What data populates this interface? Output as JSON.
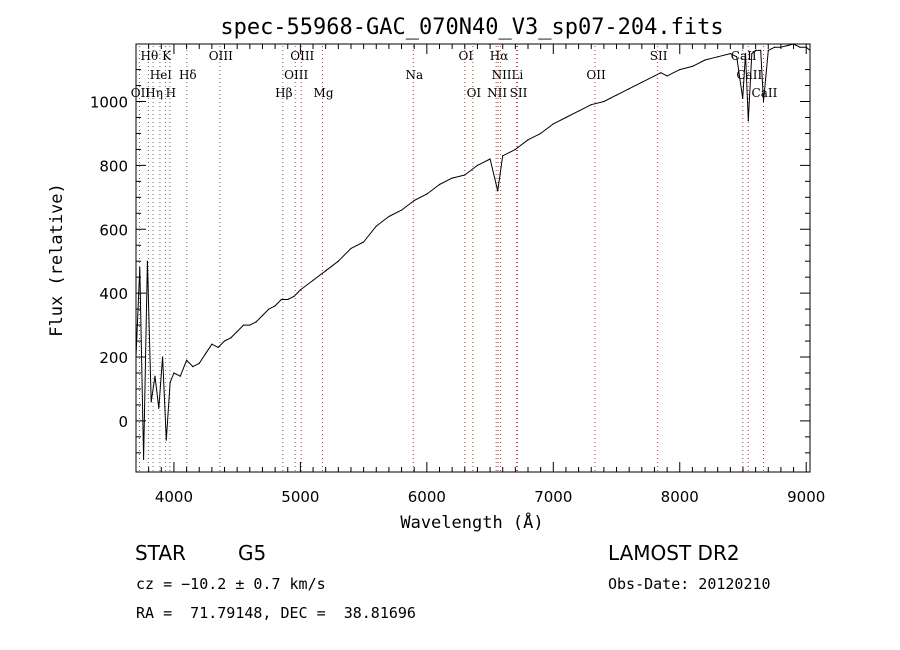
{
  "chart_data": {
    "type": "line",
    "title": "spec-55968-GAC_070N40_V3_sp07-204.fits",
    "xlabel": "Wavelength (Å)",
    "ylabel": "Flux (relative)",
    "xlim": [
      3700,
      9030
    ],
    "ylim": [
      -160,
      1180
    ],
    "x_ticks": [
      4000,
      5000,
      6000,
      7000,
      8000,
      9000
    ],
    "y_ticks": [
      0,
      200,
      400,
      600,
      800,
      1000
    ],
    "grid": false,
    "series": [
      {
        "x": [
          3700,
          3730,
          3760,
          3790,
          3820,
          3850,
          3880,
          3910,
          3940,
          3970,
          4000,
          4050,
          4100,
          4150,
          4200,
          4250,
          4300,
          4350,
          4400,
          4450,
          4500,
          4550,
          4600,
          4650,
          4700,
          4750,
          4800,
          4850,
          4900,
          4950,
          5000,
          5100,
          5200,
          5300,
          5400,
          5500,
          5600,
          5700,
          5800,
          5900,
          6000,
          6100,
          6200,
          6300,
          6400,
          6500,
          6560,
          6600,
          6700,
          6800,
          6900,
          7000,
          7100,
          7200,
          7300,
          7400,
          7500,
          7600,
          7700,
          7800,
          7850,
          7900,
          8000,
          8100,
          8200,
          8300,
          8400,
          8450,
          8498,
          8520,
          8542,
          8570,
          8600,
          8640,
          8662,
          8700,
          8750,
          8800,
          8850,
          8900,
          8950,
          9000,
          9030
        ],
        "y": [
          200,
          480,
          -120,
          500,
          60,
          140,
          40,
          200,
          -60,
          120,
          150,
          140,
          190,
          170,
          180,
          210,
          240,
          230,
          250,
          260,
          280,
          300,
          300,
          310,
          330,
          350,
          360,
          380,
          380,
          390,
          410,
          440,
          470,
          500,
          540,
          560,
          610,
          640,
          660,
          690,
          710,
          740,
          760,
          770,
          800,
          820,
          720,
          830,
          850,
          880,
          900,
          930,
          950,
          970,
          990,
          1000,
          1020,
          1040,
          1060,
          1080,
          1090,
          1080,
          1100,
          1110,
          1130,
          1140,
          1150,
          1140,
          1010,
          1150,
          940,
          1150,
          1160,
          1160,
          1000,
          1160,
          1170,
          1170,
          1175,
          1180,
          1170,
          1170,
          1160
        ]
      }
    ],
    "line_markers": [
      {
        "label": "Hθ",
        "x": 3798,
        "row": 0
      },
      {
        "label": "K",
        "x": 3934,
        "row": 0
      },
      {
        "label": "OIII",
        "x": 4363,
        "row": 0
      },
      {
        "label": "OIII",
        "x": 5007,
        "row": 0
      },
      {
        "label": "OI",
        "x": 6300,
        "row": 0
      },
      {
        "label": "Hα",
        "x": 6563,
        "row": 0
      },
      {
        "label": "SII",
        "x": 7825,
        "row": 0
      },
      {
        "label": "CaII",
        "x": 8498,
        "row": 0
      },
      {
        "label": "HeI",
        "x": 3889,
        "row": 1
      },
      {
        "label": "Hδ",
        "x": 4102,
        "row": 1
      },
      {
        "label": "OIII",
        "x": 4959,
        "row": 1
      },
      {
        "label": "Na",
        "x": 5893,
        "row": 1
      },
      {
        "label": "NII",
        "x": 6583,
        "row": 1
      },
      {
        "label": "Li",
        "x": 6708,
        "row": 1
      },
      {
        "label": "OII",
        "x": 7330,
        "row": 1
      },
      {
        "label": "CaII",
        "x": 8542,
        "row": 1
      },
      {
        "label": "OII",
        "x": 3727,
        "row": 2
      },
      {
        "label": "Hη",
        "x": 3835,
        "row": 2
      },
      {
        "label": "H",
        "x": 3968,
        "row": 2
      },
      {
        "label": "Hβ",
        "x": 4861,
        "row": 2
      },
      {
        "label": "Mg",
        "x": 5175,
        "row": 2
      },
      {
        "label": "OI",
        "x": 6364,
        "row": 2
      },
      {
        "label": "NII",
        "x": 6548,
        "row": 2
      },
      {
        "label": "SII",
        "x": 6717,
        "row": 2
      },
      {
        "label": "CaII",
        "x": 8662,
        "row": 2
      }
    ]
  },
  "info": {
    "object_class": "STAR",
    "subclass": "G5",
    "cz": "cz = −10.2 ± 0.7 km/s",
    "ra_dec": "RA =  71.79148, DEC =  38.81696",
    "survey": "LAMOST DR2",
    "obs_date": "Obs-Date: 20120210"
  }
}
